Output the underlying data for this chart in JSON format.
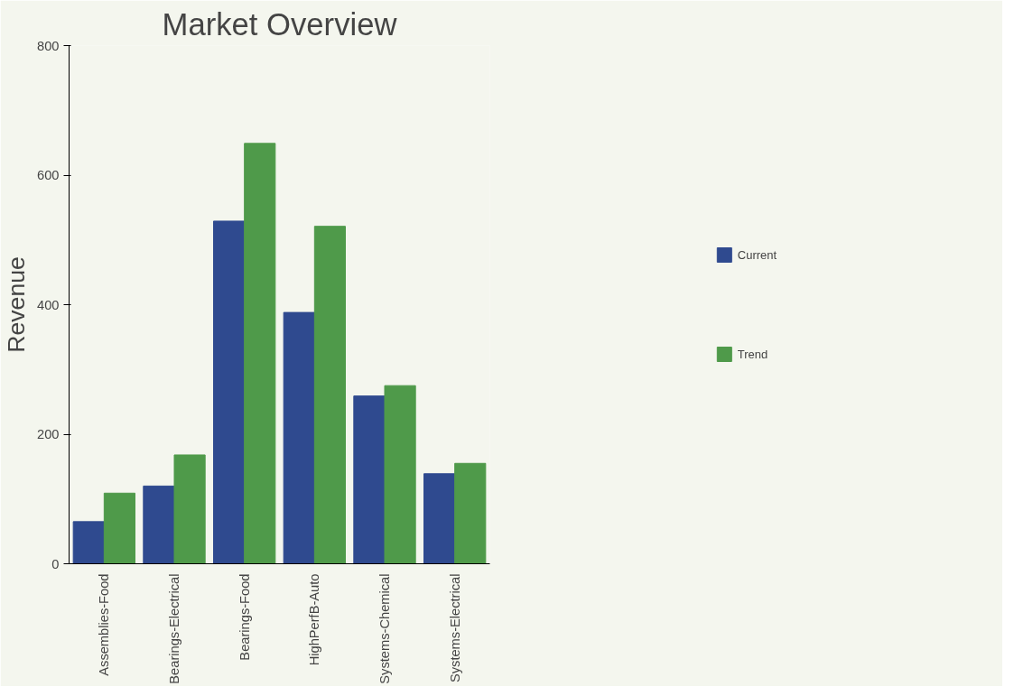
{
  "chart_data": {
    "type": "bar",
    "title": "Market Overview",
    "ylabel": "Revenue",
    "categories": [
      "Assemblies-Food",
      "Bearings-Electrical",
      "Bearings-Food",
      "HighPerfB-Auto",
      "Systems-Chemical",
      "Systems-Electrical"
    ],
    "series": [
      {
        "name": "Current",
        "color": "#2f4a8f",
        "values": [
          65,
          120,
          529,
          388,
          259,
          139
        ]
      },
      {
        "name": "Trend",
        "color": "#4f9a4a",
        "values": [
          109,
          168,
          649,
          521,
          275,
          155
        ]
      }
    ],
    "ylim": [
      0,
      800
    ],
    "yticks": [
      0,
      200,
      400,
      600,
      800
    ],
    "grid": false,
    "legend": "right"
  }
}
